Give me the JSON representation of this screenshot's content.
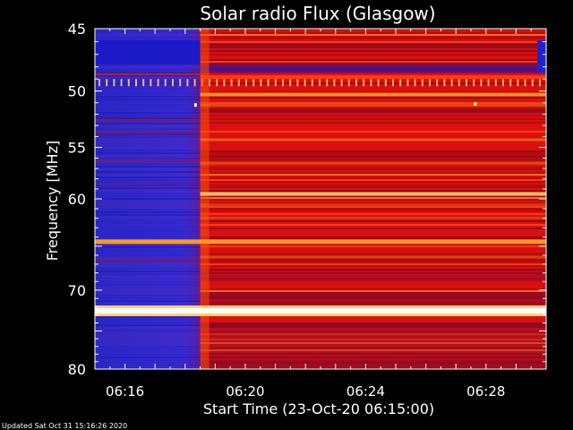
{
  "chart_data": {
    "type": "heatmap",
    "title": "Solar radio Flux (Glasgow)",
    "xlabel": "Start Time (23-Oct-20 06:15:00)",
    "ylabel": "Frequency [MHz]",
    "x_unit": "time",
    "x_start": "06:15:00",
    "x_range_minutes": [
      0,
      15
    ],
    "y_range_mhz": [
      45,
      80
    ],
    "y_scale": "log",
    "x_ticks": [
      {
        "minute": 1,
        "label": "06:16"
      },
      {
        "minute": 5,
        "label": "06:20"
      },
      {
        "minute": 9,
        "label": "06:24"
      },
      {
        "minute": 13,
        "label": "06:28"
      }
    ],
    "y_ticks": [
      {
        "mhz": 45,
        "label": "45"
      },
      {
        "mhz": 50,
        "label": "50"
      },
      {
        "mhz": 55,
        "label": "55"
      },
      {
        "mhz": 60,
        "label": "60"
      },
      {
        "mhz": 70,
        "label": "70"
      },
      {
        "mhz": 80,
        "label": "80"
      }
    ],
    "data_gap_end_minute": 3.5,
    "bright_bands_mhz": [
      {
        "mhz": 50.3,
        "level": "orange"
      },
      {
        "mhz": 59.5,
        "level": "bright"
      },
      {
        "mhz": 64.5,
        "level": "orange"
      },
      {
        "mhz": 72.5,
        "level": "saturated"
      }
    ],
    "colors": {
      "low": "#3030e8",
      "mid": "#e01010",
      "high": "#ff9020",
      "max": "#ffffff"
    }
  },
  "footer": {
    "updated": "Updated Sat Oct 31 15:16:26 2020"
  }
}
